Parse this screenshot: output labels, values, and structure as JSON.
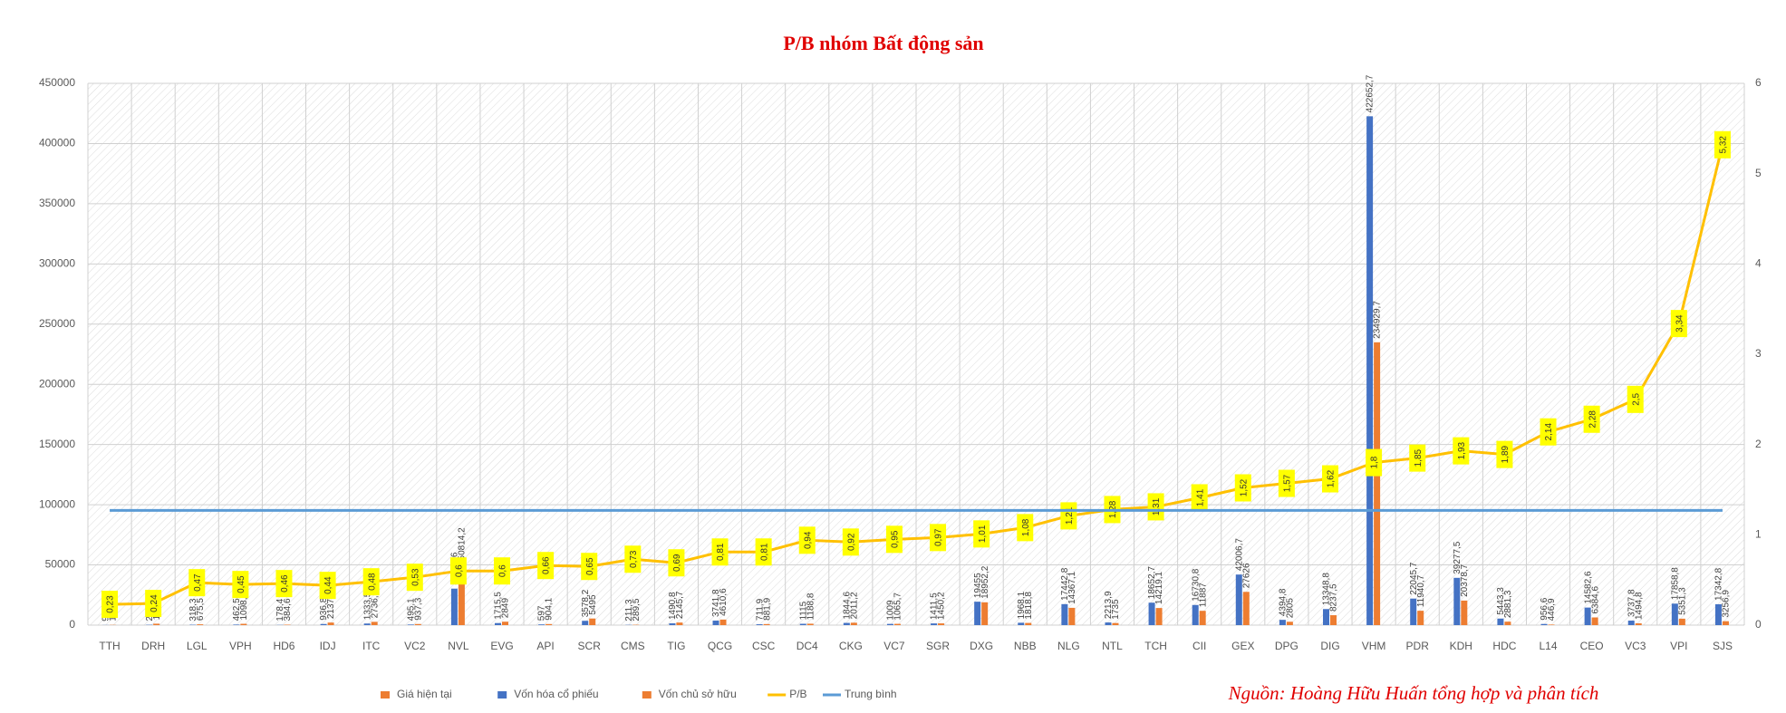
{
  "chart_data": {
    "type": "bar",
    "title": "P/B nhóm Bất động sản",
    "source": "Nguồn: Hoàng Hữu Huấn tổng hợp và phân tích",
    "categories": [
      "TTH",
      "DRH",
      "LGL",
      "VPH",
      "HD6",
      "IDJ",
      "ITC",
      "VC2",
      "NVL",
      "EVG",
      "API",
      "SCR",
      "CMS",
      "TIG",
      "QCG",
      "CSC",
      "DC4",
      "CKG",
      "VC7",
      "SGR",
      "DXG",
      "NBB",
      "NLG",
      "NTL",
      "TCH",
      "CII",
      "GEX",
      "DPG",
      "DIG",
      "VHM",
      "PDR",
      "KDH",
      "HDC",
      "L14",
      "CEO",
      "VC3",
      "VPI",
      "SJS"
    ],
    "ylim": [
      0,
      450000
    ],
    "yticks": [
      0,
      50000,
      100000,
      150000,
      200000,
      250000,
      300000,
      350000,
      400000,
      450000
    ],
    "y2lim": [
      0,
      6
    ],
    "y2ticks": [
      0,
      1,
      2,
      3,
      4,
      5,
      6
    ],
    "grid": true,
    "series": [
      {
        "name": "Giá hiện tại",
        "type": "bar",
        "color": "#ed7d31",
        "values": [
          null,
          null,
          null,
          null,
          null,
          null,
          null,
          null,
          null,
          null,
          null,
          null,
          null,
          null,
          null,
          null,
          null,
          null,
          null,
          null,
          null,
          null,
          null,
          null,
          null,
          null,
          null,
          null,
          null,
          null,
          null,
          null,
          null,
          null,
          null,
          null,
          null,
          null
        ]
      },
      {
        "name": "Vốn hóa cổ phiếu",
        "type": "bar",
        "color": "#4472c4",
        "values": [
          93.4,
          289.5,
          318.3,
          462.5,
          178.4,
          936.8,
          1333.5,
          495.1,
          30304.6,
          1715.5,
          597,
          3578.2,
          211.3,
          1490.8,
          3741.8,
          711.9,
          1115,
          1844.6,
          1009,
          1411.5,
          19455,
          1968.1,
          17442.8,
          2213.9,
          18652.7,
          16730.8,
          42006.7,
          4394.8,
          13348.8,
          422652.7,
          22045.7,
          39277.5,
          5443.3,
          956.6,
          14582.6,
          3737.8,
          17858.8,
          17342.8
        ],
        "value_labels": [
          "93,4",
          "289,5",
          "318,3",
          "462,5",
          "178,4",
          "936,8",
          "1333,5",
          "495,1",
          "30304,6",
          "1715,5",
          "597",
          "3578,2",
          "211,3",
          "1490,8",
          "3741,8",
          "711,9",
          "1115",
          "1844,6",
          "1009",
          "1411,5",
          "19455",
          "1968,1",
          "17442,8",
          "2213,9",
          "18652,7",
          "16730,8",
          "42006,7",
          "4394,8",
          "13348,8",
          "422652,7",
          "22045,7",
          "39277,5",
          "5443,3",
          "956,6",
          "14582,6",
          "3737,8",
          "17858,8",
          "17342,8"
        ]
      },
      {
        "name": "Vốn chủ sở hữu",
        "type": "bar",
        "color": "#ed7d31",
        "values": [
          186.5,
          1190.9,
          675.5,
          1098.4,
          384.6,
          2137.5,
          2736.6,
          937.3,
          50814.2,
          2849,
          904.1,
          5495,
          289.5,
          2145.7,
          4610.6,
          881.9,
          1188.8,
          2011.2,
          1065.7,
          1450.2,
          18952.2,
          1818.8,
          14367.1,
          1735,
          14219.1,
          11887,
          27626,
          2805,
          8237.5,
          234929.7,
          11940.7,
          20378.7,
          2881.3,
          446.9,
          6384.6,
          1494.8,
          5351.3,
          3256.9
        ],
        "value_labels": [
          "186,5",
          "1190,9",
          "675,5",
          "1098,4",
          "384,6",
          "2137,5",
          "2736,6",
          "937,3",
          "50814,2",
          "2849",
          "904,1",
          "5495",
          "289,5",
          "2145,7",
          "4610,6",
          "881,9",
          "1188,8",
          "2011,2",
          "1065,7",
          "1450,2",
          "18952,2",
          "1818,8",
          "14367,1",
          "1735",
          "14219,1",
          "11887",
          "27626",
          "2805",
          "8237,5",
          "234929,7",
          "11940,7",
          "20378,7",
          "2881,3",
          "446,9",
          "6384,6",
          "1494,8",
          "5351,3",
          "3256,9"
        ]
      },
      {
        "name": "P/B",
        "type": "line",
        "axis": "y2",
        "color": "#ffc000",
        "values": [
          0.23,
          0.24,
          0.47,
          0.45,
          0.46,
          0.44,
          0.48,
          0.53,
          0.6,
          0.6,
          0.66,
          0.65,
          0.73,
          0.69,
          0.81,
          0.81,
          0.94,
          0.92,
          0.95,
          0.97,
          1.01,
          1.08,
          1.21,
          1.28,
          1.31,
          1.41,
          1.52,
          1.57,
          1.62,
          1.8,
          1.85,
          1.93,
          1.89,
          2.14,
          2.28,
          2.5,
          3.34,
          5.32
        ],
        "value_labels": [
          "0,23",
          "0,24",
          "0,47",
          "0,45",
          "0,46",
          "0,44",
          "0,48",
          "0,53",
          "0,6",
          "0,6",
          "0,66",
          "0,65",
          "0,73",
          "0,69",
          "0,81",
          "0,81",
          "0,94",
          "0,92",
          "0,95",
          "0,97",
          "1,01",
          "1,08",
          "1,21",
          "1,28",
          "1,31",
          "1,41",
          "1,52",
          "1,57",
          "1,62",
          "1,8",
          "1,85",
          "1,93",
          "1,89",
          "2,14",
          "2,28",
          "2,5",
          "3,34",
          "5,32"
        ]
      },
      {
        "name": "Trung bình",
        "type": "line",
        "axis": "y2",
        "color": "#5b9bd5",
        "values": [
          1.27,
          1.27,
          1.27,
          1.27,
          1.27,
          1.27,
          1.27,
          1.27,
          1.27,
          1.27,
          1.27,
          1.27,
          1.27,
          1.27,
          1.27,
          1.27,
          1.27,
          1.27,
          1.27,
          1.27,
          1.27,
          1.27,
          1.27,
          1.27,
          1.27,
          1.27,
          1.27,
          1.27,
          1.27,
          1.27,
          1.27,
          1.27,
          1.27,
          1.27,
          1.27,
          1.27,
          1.27,
          1.27
        ]
      }
    ]
  }
}
